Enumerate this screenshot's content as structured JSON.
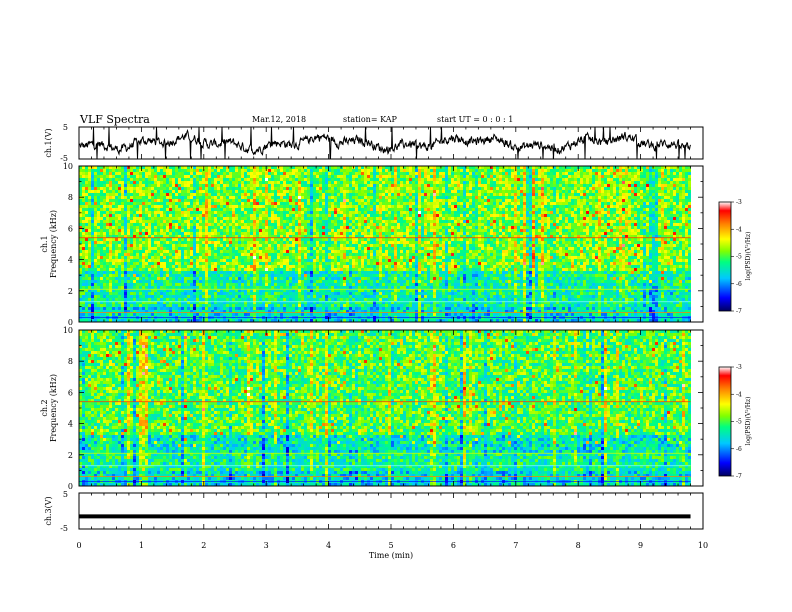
{
  "header": {
    "title": "VLF Spectra",
    "date": "Mar.12, 2018",
    "station": "station= KAP",
    "start": "start  UT =   0 : 0  : 1"
  },
  "chart_data": [
    {
      "type": "line",
      "name": "ch1-waveform",
      "ylabel": "ch.1(V)",
      "ylim": [
        -5,
        5
      ],
      "yticks": [
        "5",
        "-5"
      ],
      "description_values_note": "noisy waveform oscillating roughly between -3 V and +3 V over 0-9.8 min"
    },
    {
      "type": "heatmap",
      "name": "ch1-spectrogram",
      "ylabel": "ch.1\nFrequency  (kHz)",
      "ylim": [
        0,
        10
      ],
      "yticks": [
        "0",
        "2",
        "4",
        "6",
        "8",
        "10"
      ],
      "colorbar": {
        "label": "log(PSD)(V²/Hz)",
        "range": [
          -7,
          -3
        ],
        "ticks": [
          "-3",
          "-4",
          "-5",
          "-6",
          "-7"
        ]
      }
    },
    {
      "type": "heatmap",
      "name": "ch2-spectrogram",
      "ylabel": "ch.2\nFrequency  (kHz)",
      "ylim": [
        0,
        10
      ],
      "yticks": [
        "0",
        "2",
        "4",
        "6",
        "8",
        "10"
      ],
      "colorbar": {
        "label": "log(PSD)(V²/Hz)",
        "range": [
          -7,
          -3
        ],
        "ticks": [
          "-3",
          "-4",
          "-5",
          "-6",
          "-7"
        ]
      }
    },
    {
      "type": "line",
      "name": "ch3-waveform",
      "ylabel": "ch.3(V)",
      "ylim": [
        -5,
        5
      ],
      "yticks": [
        "5",
        "-5"
      ],
      "value": -1.5
    }
  ],
  "xaxis": {
    "label": "Time  (min)",
    "range": [
      0,
      10
    ],
    "data_end": 9.8,
    "ticks": [
      "0",
      "1",
      "2",
      "3",
      "4",
      "5",
      "6",
      "7",
      "8",
      "9",
      "10"
    ]
  },
  "colors": {
    "colormap": [
      "#000080",
      "#0000ff",
      "#00bfff",
      "#00ff80",
      "#80ff00",
      "#ffff00",
      "#ff8000",
      "#ff0000",
      "#ffffff"
    ]
  }
}
